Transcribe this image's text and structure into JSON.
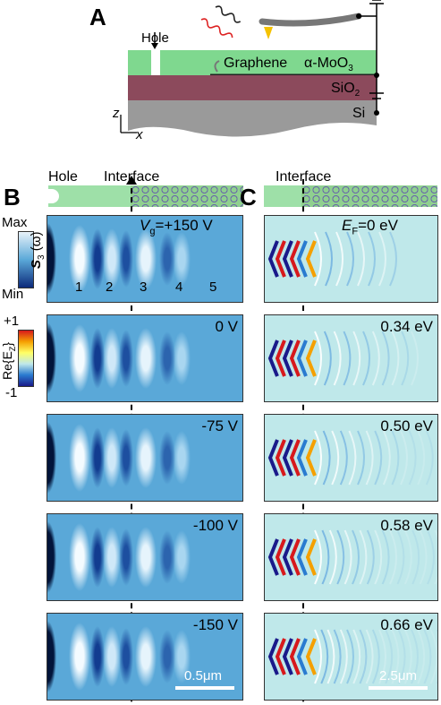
{
  "panelA": {
    "letter": "A",
    "hole": "Hole",
    "graphene": "Graphene",
    "moo3": "α-MoO",
    "moo3_sub": "3",
    "sio2": "SiO",
    "sio2_sub": "2",
    "si": "Si",
    "axis_z": "z",
    "axis_x": "x"
  },
  "panelB": {
    "letter": "B",
    "hole": "Hole",
    "interface": "Interface",
    "cbar1_max": "Max",
    "cbar1_min": "Min",
    "cbar1_label_main": "S",
    "cbar1_label_sub": "3",
    "cbar1_label_rest": " (ω)",
    "cbar2_top": "+1",
    "cbar2_bottom": "-1",
    "cbar2_label": "Re{E",
    "cbar2_label_sub": "Z",
    "cbar2_label_end": "}",
    "fringes": [
      "1",
      "2",
      "3",
      "4",
      "5"
    ],
    "vg_prefix": "V",
    "vg_sub": "g",
    "vg_first_value": "=+150 V",
    "labels": [
      "0 V",
      "-75 V",
      "-100 V",
      "-150 V"
    ],
    "scale": "0.5μm"
  },
  "panelC": {
    "letter": "C",
    "interface": "Interface",
    "ef_prefix": "E",
    "ef_sub": "F",
    "ef_first_value": "=0 eV",
    "labels": [
      "0.34 eV",
      "0.50 eV",
      "0.58 eV",
      "0.66 eV"
    ],
    "scale": "2.5μm"
  },
  "colors": {
    "moo3": "#7fd88f",
    "sio2": "#8c4a5c",
    "si": "#9a9a9a",
    "tip": "#f5c200",
    "map_bg": "#5aa8d8",
    "sim_bg": "#bfe8ea"
  }
}
